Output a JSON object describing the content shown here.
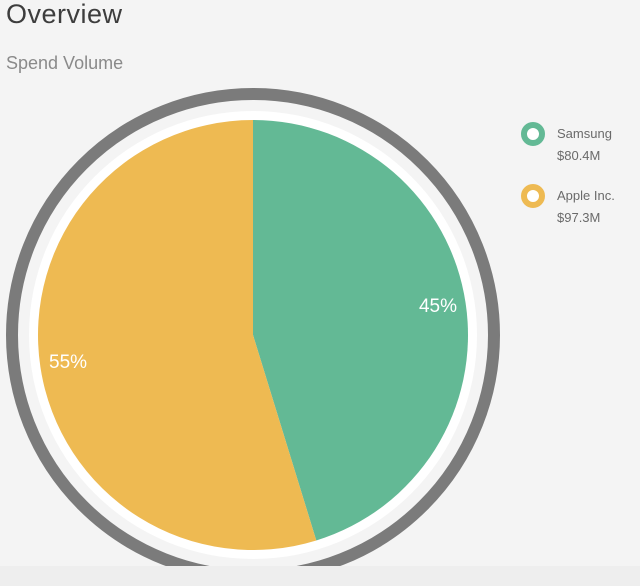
{
  "header": {
    "title": "Overview"
  },
  "chart_data": {
    "type": "pie",
    "title": "Spend Volume",
    "start_angle_deg": 0,
    "direction": "clockwise",
    "slices": [
      {
        "label": "Samsung",
        "value_label": "$80.4M",
        "value": 80.4,
        "percent_label": "45%",
        "color": "#63b995"
      },
      {
        "label": "Apple Inc.",
        "value_label": "$97.3M",
        "value": 97.3,
        "percent_label": "55%",
        "color": "#eeba52"
      }
    ],
    "legend_position": "right",
    "ring_color": "#7b7b7b"
  }
}
